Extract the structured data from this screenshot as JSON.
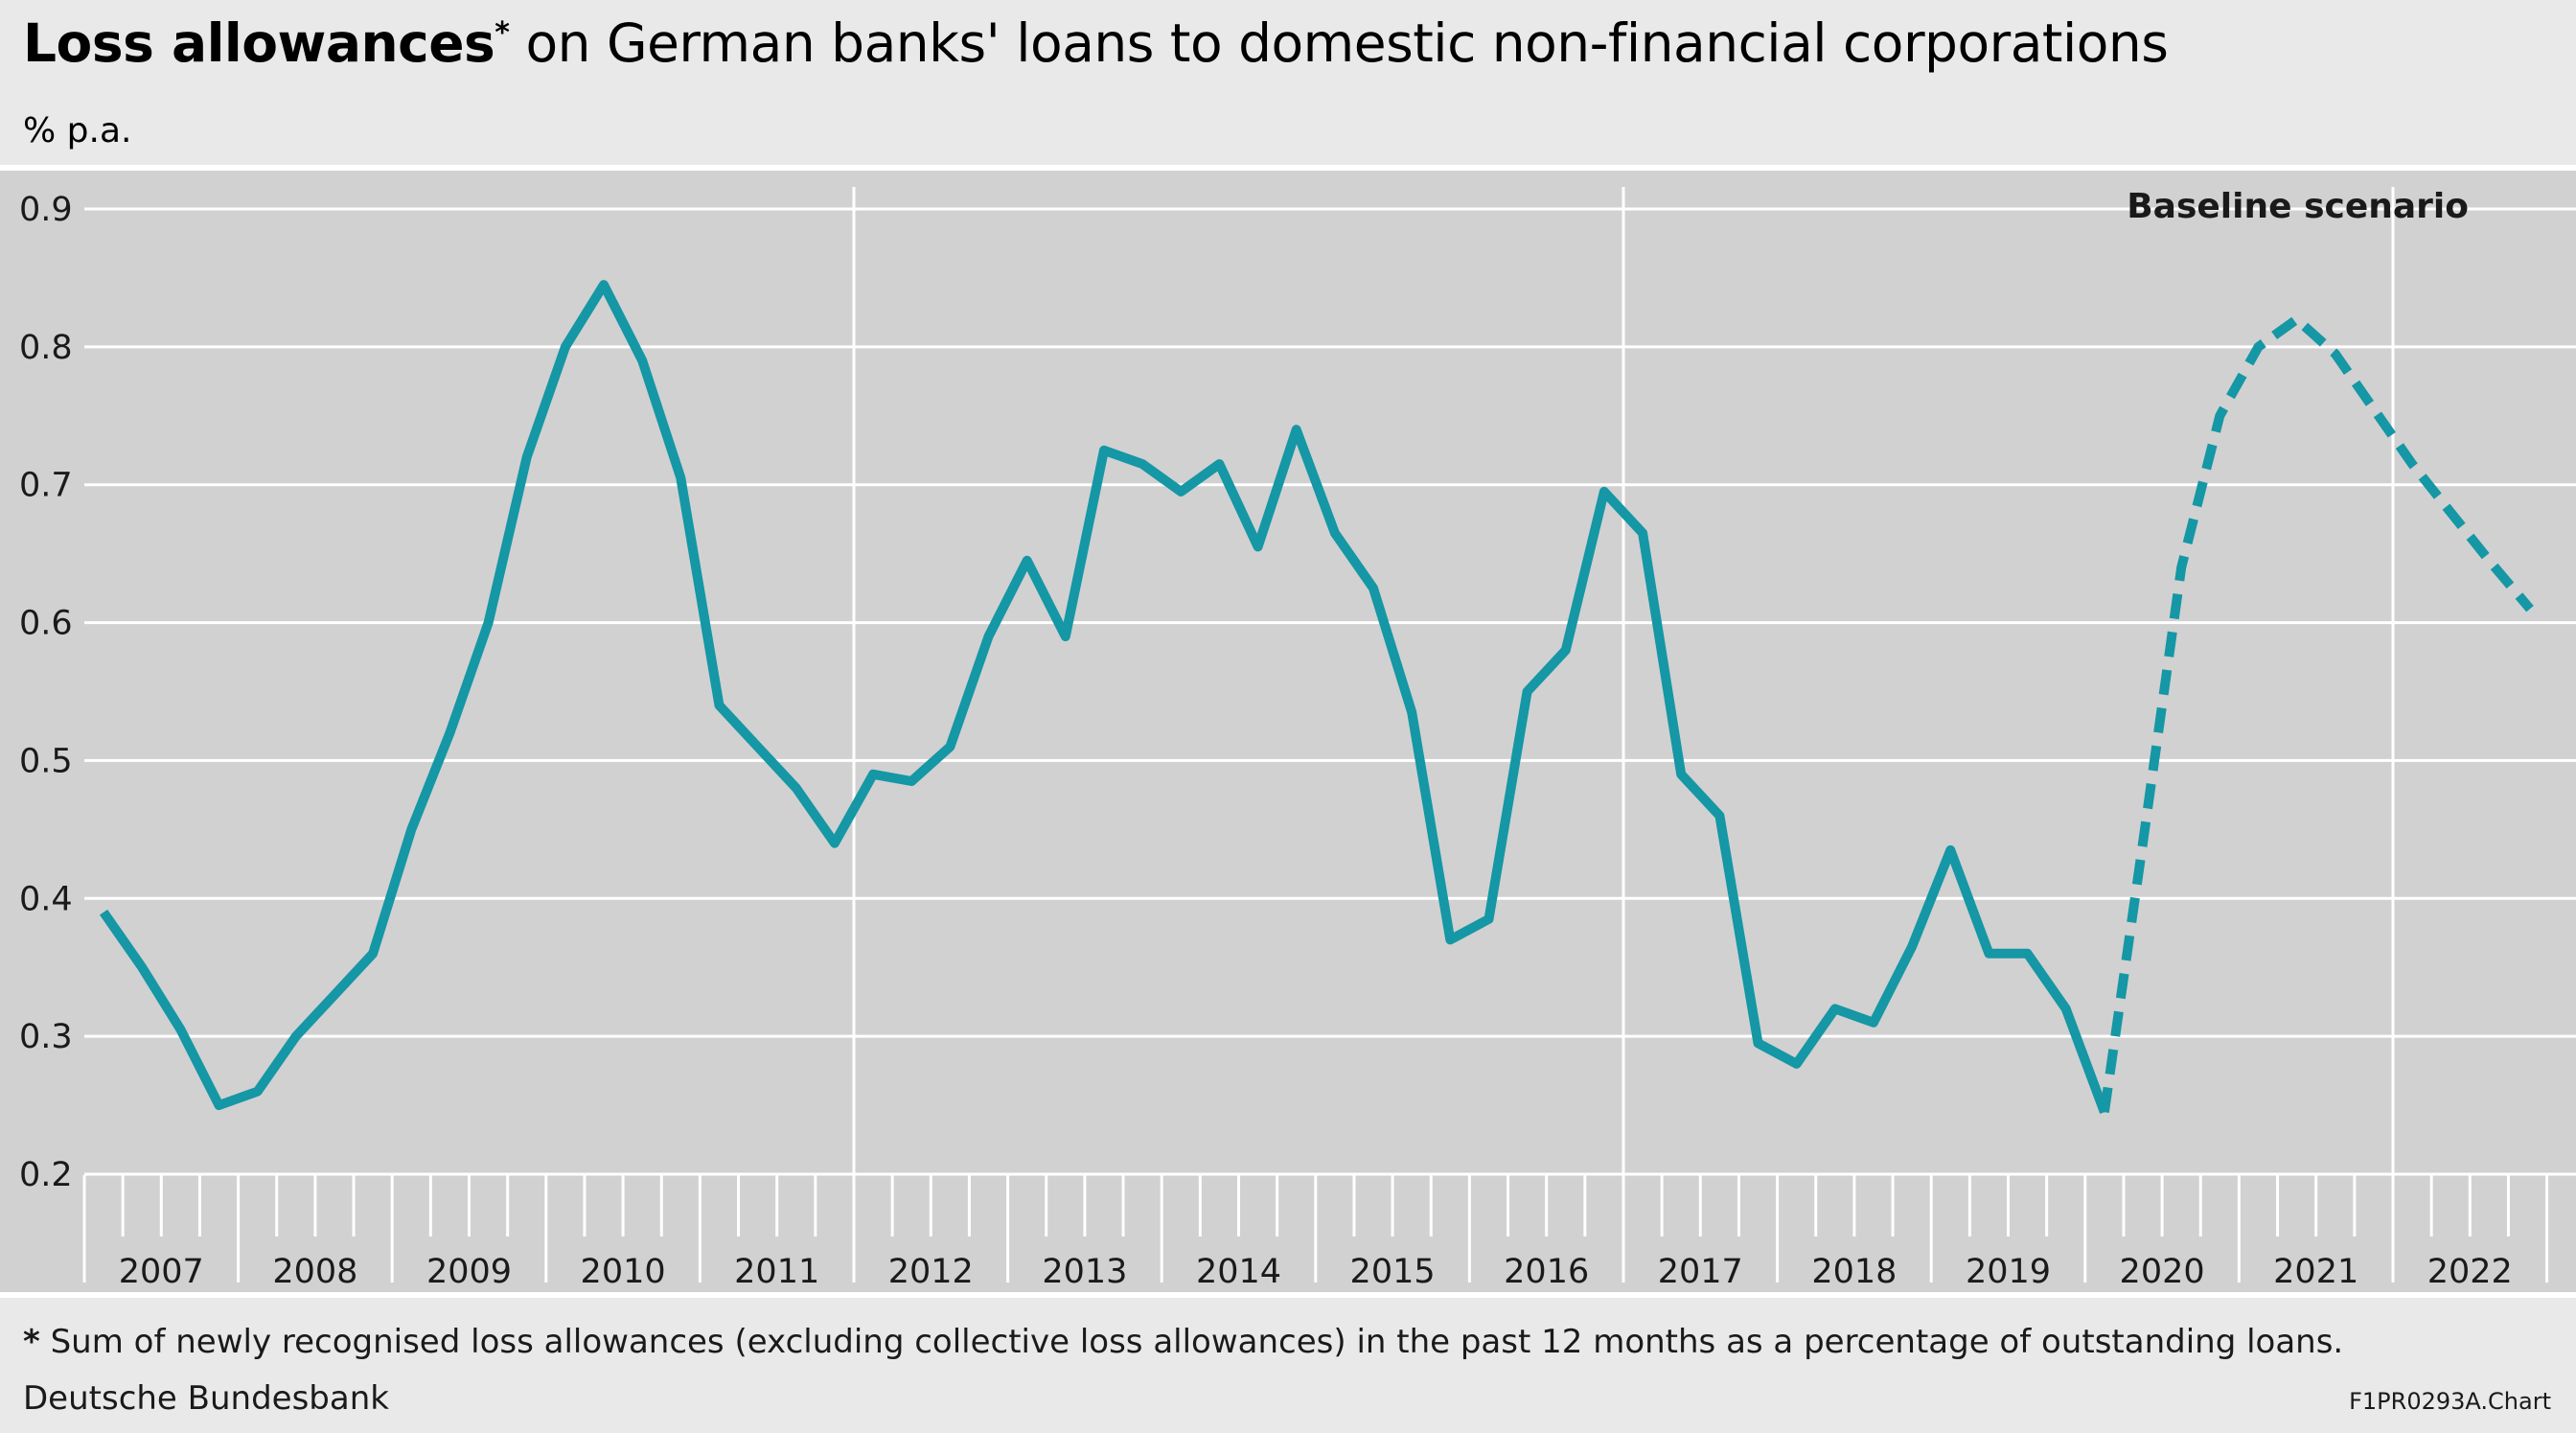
{
  "header": {
    "title_bold": "Loss allowances",
    "title_star": "*",
    "title_rest": " on German banks' loans to domestic non-financial corporations",
    "unit": "% p.a."
  },
  "chart_data": {
    "type": "line",
    "title": "Loss allowances* on German banks' loans to domestic non-financial corporations",
    "ylabel": "% p.a.",
    "ylim": [
      0.2,
      0.9
    ],
    "yticks": [
      "0.2",
      "0.3",
      "0.4",
      "0.5",
      "0.6",
      "0.7",
      "0.8",
      "0.9"
    ],
    "grid": true,
    "x_years": [
      "2007",
      "2008",
      "2009",
      "2010",
      "2011",
      "2012",
      "2013",
      "2014",
      "2015",
      "2016",
      "2017",
      "2018",
      "2019",
      "2020",
      "2021",
      "2022"
    ],
    "annotation": "Baseline scenario",
    "series": [
      {
        "style": "solid",
        "color": "#1597a5",
        "x": [
          "2007Q1",
          "2007Q2",
          "2007Q3",
          "2007Q4",
          "2008Q1",
          "2008Q2",
          "2008Q3",
          "2008Q4",
          "2009Q1",
          "2009Q2",
          "2009Q3",
          "2009Q4",
          "2010Q1",
          "2010Q2",
          "2010Q3",
          "2010Q4",
          "2011Q1",
          "2011Q2",
          "2011Q3",
          "2011Q4",
          "2012Q1",
          "2012Q2",
          "2012Q3",
          "2012Q4",
          "2013Q1",
          "2013Q2",
          "2013Q3",
          "2013Q4",
          "2014Q1",
          "2014Q2",
          "2014Q3",
          "2014Q4",
          "2015Q1",
          "2015Q2",
          "2015Q3",
          "2015Q4",
          "2016Q1",
          "2016Q2",
          "2016Q3",
          "2016Q4",
          "2017Q1",
          "2017Q2",
          "2017Q3",
          "2017Q4",
          "2018Q1",
          "2018Q2",
          "2018Q3",
          "2018Q4",
          "2019Q1",
          "2019Q2",
          "2019Q3",
          "2019Q4",
          "2020Q1"
        ],
        "values": [
          0.39,
          0.35,
          0.305,
          0.25,
          0.26,
          0.3,
          0.33,
          0.36,
          0.45,
          0.52,
          0.6,
          0.72,
          0.8,
          0.845,
          0.79,
          0.705,
          0.54,
          0.51,
          0.48,
          0.44,
          0.49,
          0.485,
          0.51,
          0.59,
          0.645,
          0.59,
          0.725,
          0.715,
          0.695,
          0.715,
          0.655,
          0.74,
          0.665,
          0.625,
          0.535,
          0.37,
          0.385,
          0.55,
          0.58,
          0.695,
          0.665,
          0.49,
          0.46,
          0.295,
          0.28,
          0.32,
          0.31,
          0.365,
          0.435,
          0.36,
          0.36,
          0.32,
          0.245
        ]
      },
      {
        "style": "dashed",
        "color": "#1597a5",
        "x": [
          "2020Q1",
          "2020Q2",
          "2020Q3",
          "2020Q4",
          "2021Q1",
          "2021Q2",
          "2021Q3",
          "2021Q4",
          "2022Q1",
          "2022Q2",
          "2022Q3"
        ],
        "values": [
          0.245,
          0.44,
          0.64,
          0.75,
          0.8,
          0.82,
          0.795,
          0.755,
          0.715,
          0.68,
          0.645
        ]
      }
    ],
    "forecast_end_value": 0.61
  },
  "footer": {
    "footnote_star": "*",
    "footnote": " Sum of newly recognised loss allowances (excluding collective loss allowances) in the past 12 months as a percentage of outstanding loans.",
    "source": "Deutsche Bundesbank",
    "code": "F1PR0293A.Chart"
  }
}
